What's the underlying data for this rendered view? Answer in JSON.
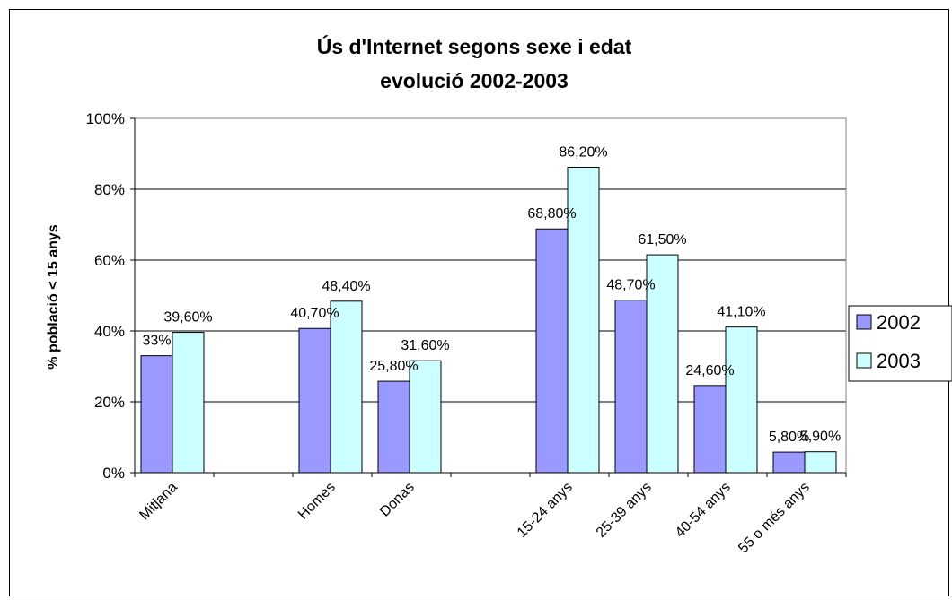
{
  "chart_data": {
    "type": "bar",
    "title": [
      "Ús d'Internet segons sexe i edat",
      "evolució 2002-2003"
    ],
    "ylabel": "% població < 15 anys",
    "xlabel": "",
    "ylim": [
      0,
      100
    ],
    "yticks": [
      0,
      20,
      40,
      60,
      80,
      100
    ],
    "ytick_labels": [
      "0%",
      "20%",
      "40%",
      "60%",
      "80%",
      "100%"
    ],
    "grid": true,
    "legend": "right",
    "categories": [
      "Mitjana",
      "",
      "Homes",
      "Donas",
      "",
      "15-24 anys",
      "25-39 anys",
      "40-54 anys",
      "55 o més anys"
    ],
    "series": [
      {
        "name": "2002",
        "color": "#9999ff",
        "values": [
          33,
          null,
          40.7,
          25.8,
          null,
          68.8,
          48.7,
          24.6,
          5.8
        ],
        "labels": [
          "33%",
          "",
          "40,70%",
          "25,80%",
          "",
          "68,80%",
          "48,70%",
          "24,60%",
          "5,80%"
        ]
      },
      {
        "name": "2003",
        "color": "#ccffff",
        "values": [
          39.6,
          null,
          48.4,
          31.6,
          null,
          86.2,
          61.5,
          41.1,
          5.9
        ],
        "labels": [
          "39,60%",
          "",
          "48,40%",
          "31,60%",
          "",
          "86,20%",
          "61,50%",
          "41,10%",
          "5,90%"
        ]
      }
    ]
  }
}
